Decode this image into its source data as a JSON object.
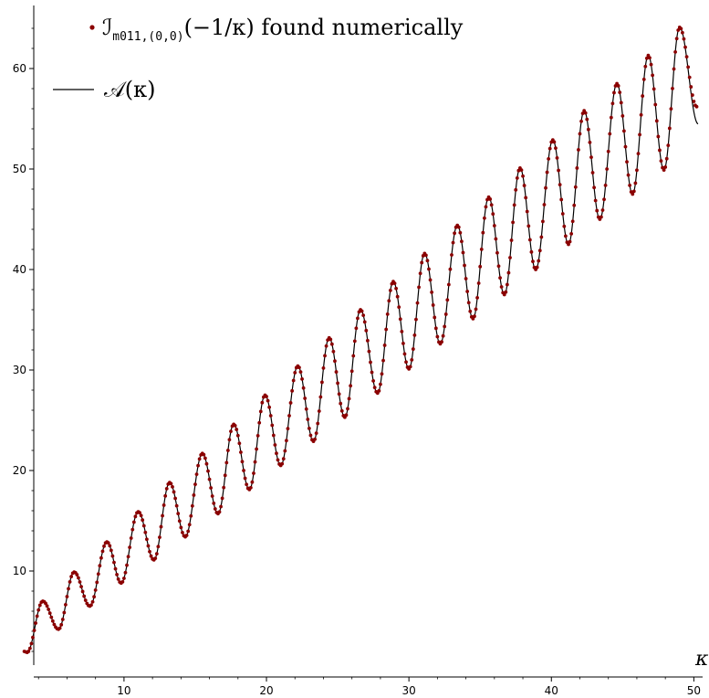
{
  "chart_data": {
    "type": "scatter",
    "xlabel": "κ",
    "ylabel": "",
    "xlim": [
      2.0,
      51.0
    ],
    "ylim": [
      0.0,
      66.0
    ],
    "x_ticks": [
      10,
      20,
      30,
      40,
      50
    ],
    "y_ticks": [
      10,
      20,
      30,
      40,
      50,
      60
    ],
    "grid": false,
    "legend_position": "top-left",
    "colors": {
      "points": "#8b0000",
      "line": "#000000",
      "axes": "#000000"
    },
    "legend": [
      {
        "marker": "dot",
        "main": "ℐ",
        "subscript": "m011,(0,0)",
        "tail": "(−1/κ) found numerically"
      },
      {
        "marker": "line",
        "text": "𝒜(κ)"
      }
    ],
    "series": [
      {
        "kind": "points",
        "x_start": 3.0,
        "x_end": 50.2,
        "x_step": 0.1,
        "peaks": [
          [
            4.3,
            7.0
          ],
          [
            6.5,
            9.9
          ],
          [
            8.8,
            12.9
          ],
          [
            11.0,
            15.9
          ],
          [
            13.2,
            18.8
          ],
          [
            15.5,
            21.7
          ],
          [
            17.7,
            24.6
          ],
          [
            19.9,
            27.5
          ],
          [
            22.2,
            30.4
          ],
          [
            24.4,
            33.2
          ],
          [
            26.6,
            36.0
          ],
          [
            28.9,
            38.8
          ],
          [
            31.1,
            41.6
          ],
          [
            33.4,
            44.4
          ],
          [
            35.6,
            47.2
          ],
          [
            37.8,
            50.1
          ],
          [
            40.1,
            52.9
          ],
          [
            42.3,
            55.8
          ],
          [
            44.6,
            58.5
          ],
          [
            46.8,
            61.3
          ],
          [
            49.0,
            64.1
          ]
        ],
        "troughs": [
          [
            3.2,
            1.9
          ],
          [
            5.4,
            4.2
          ],
          [
            7.6,
            6.5
          ],
          [
            9.8,
            8.8
          ],
          [
            12.1,
            11.1
          ],
          [
            14.3,
            13.4
          ],
          [
            16.6,
            15.7
          ],
          [
            18.8,
            18.1
          ],
          [
            21.0,
            20.5
          ],
          [
            23.3,
            22.9
          ],
          [
            25.5,
            25.3
          ],
          [
            27.8,
            27.7
          ],
          [
            30.0,
            30.1
          ],
          [
            32.2,
            32.6
          ],
          [
            34.5,
            35.1
          ],
          [
            36.7,
            37.5
          ],
          [
            38.9,
            40.0
          ],
          [
            41.2,
            42.5
          ],
          [
            43.4,
            45.0
          ],
          [
            45.7,
            47.5
          ],
          [
            47.9,
            49.9
          ]
        ],
        "first": [
          3.0,
          2.0
        ],
        "last": [
          50.2,
          56.2
        ]
      },
      {
        "kind": "line",
        "x_start": 3.0,
        "x_end": 50.3,
        "last": [
          50.3,
          54.5
        ]
      }
    ]
  }
}
